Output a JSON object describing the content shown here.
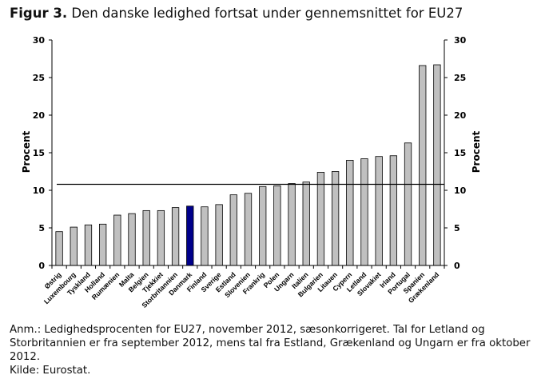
{
  "figure": {
    "label": "Figur 3.",
    "title": "Den danske ledighed fortsat under gennemsnittet for EU27"
  },
  "notes": {
    "line1": "Anm.: Ledighedsprocenten for EU27, november 2012, sæsonkorrigeret. Tal for Letland og Storbritannien er fra september 2012, mens tal fra Estland, Grækenland og Ungarn er fra oktober 2012.",
    "source": "Kilde: Eurostat."
  },
  "colors": {
    "bar": "#c0c0c0",
    "highlight": "#00008b",
    "outline": "#000000"
  },
  "chart_data": {
    "type": "bar",
    "title": "Den danske ledighed fortsat under gennemsnittet for EU27",
    "ylabel_left": "Procent",
    "ylabel_right": "Procent",
    "ylim": [
      0,
      30
    ],
    "yticks": [
      0,
      5,
      10,
      15,
      20,
      25,
      30
    ],
    "grid": false,
    "categories": [
      "Østrig",
      "Luxembourg",
      "Tyskland",
      "Holland",
      "Rumænien",
      "Malta",
      "Belgien",
      "Tjekkiet",
      "Storbritannien",
      "Danmark",
      "Finland",
      "Sverige",
      "Estland",
      "Slovenien",
      "Frankrig",
      "Polen",
      "Ungarn",
      "Italien",
      "Bulgarien",
      "Litauen",
      "Cypern",
      "Letland",
      "Slovakiet",
      "Irland",
      "Portugal",
      "Spanien",
      "Grækenland"
    ],
    "values": [
      4.5,
      5.1,
      5.4,
      5.5,
      6.7,
      6.9,
      7.3,
      7.3,
      7.7,
      7.9,
      7.8,
      8.1,
      9.4,
      9.6,
      10.5,
      10.6,
      10.9,
      11.1,
      12.4,
      12.5,
      14.0,
      14.2,
      14.5,
      14.6,
      16.3,
      26.6,
      26.7
    ],
    "highlight": "Danmark",
    "reference_line": {
      "name": "EU27",
      "value": 10.8
    }
  }
}
